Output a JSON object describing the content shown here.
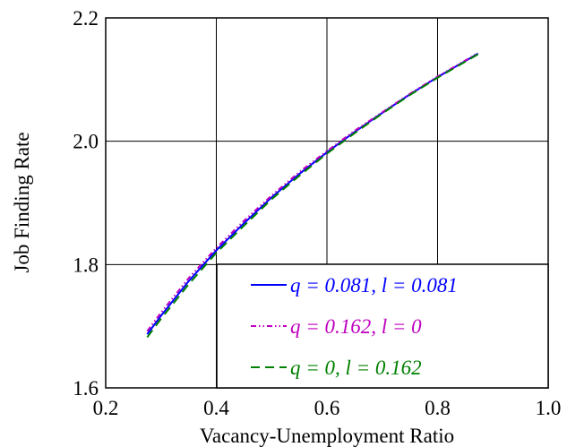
{
  "chart_data": {
    "type": "line",
    "xlabel": "Vacancy-Unemployment Ratio",
    "ylabel": "Job Finding Rate",
    "x": [
      0.275,
      0.3,
      0.35,
      0.4,
      0.45,
      0.5,
      0.55,
      0.6,
      0.65,
      0.7,
      0.75,
      0.8,
      0.85,
      0.873
    ],
    "series": [
      {
        "name": "q = 0.081, l = 0.081",
        "color": "#0000ff",
        "linestyle": "solid",
        "values": [
          1.687,
          1.717,
          1.773,
          1.823,
          1.867,
          1.909,
          1.947,
          1.982,
          2.015,
          2.046,
          2.076,
          2.104,
          2.13,
          2.142
        ]
      },
      {
        "name": "q = 0.162, l = 0",
        "color": "#bf00bf",
        "linestyle": "dashdotdot",
        "values": [
          1.692,
          1.722,
          1.778,
          1.827,
          1.871,
          1.912,
          1.95,
          1.984,
          2.017,
          2.047,
          2.077,
          2.105,
          2.131,
          2.143
        ]
      },
      {
        "name": "q = 0, l = 0.162",
        "color": "#008000",
        "linestyle": "dashed",
        "values": [
          1.682,
          1.712,
          1.768,
          1.819,
          1.863,
          1.906,
          1.944,
          1.98,
          2.013,
          2.045,
          2.075,
          2.103,
          2.129,
          2.141
        ]
      }
    ],
    "xlim": [
      0.2,
      1
    ],
    "ylim": [
      1.6,
      2.2
    ],
    "xticks": [
      0.2,
      0.4,
      0.6,
      0.8,
      {
        "value": 1,
        "label": "1.0"
      }
    ],
    "yticks": [
      1.6,
      1.8,
      {
        "value": 2,
        "label": "2.0"
      },
      2.2
    ],
    "grid": true,
    "legend": "lower right"
  }
}
